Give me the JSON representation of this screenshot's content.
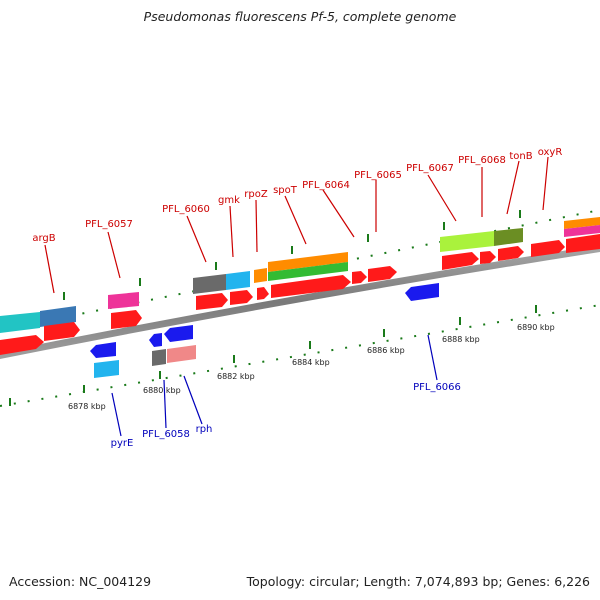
{
  "title": "Pseudomonas fluorescens Pf-5, complete genome",
  "footer": {
    "accession": "Accession: NC_004129",
    "stats": "Topology: circular; Length: 7,074,893 bp; Genes: 6,226"
  },
  "scale_labels": [
    "6878 kbp",
    "6880 kbp",
    "6882 kbp",
    "6884 kbp",
    "6886 kbp",
    "6888 kbp",
    "6890 kbp"
  ],
  "gene_labels_top": [
    "argB",
    "PFL_6057",
    "PFL_6060",
    "gmk",
    "rpoZ",
    "spoT",
    "PFL_6064",
    "PFL_6065",
    "PFL_6067",
    "PFL_6068",
    "tonB",
    "oxyR"
  ],
  "gene_labels_bottom": [
    "pyrE",
    "PFL_6058",
    "rph",
    "PFL_6066"
  ],
  "colors": {
    "forward_cds": "#ff1a1a",
    "reverse_cds": "#1a1aee",
    "top_label": "#cc0000",
    "bottom_label": "#0000bb",
    "tick": "#1a7a1a",
    "backbone": "#8c8c8c"
  }
}
